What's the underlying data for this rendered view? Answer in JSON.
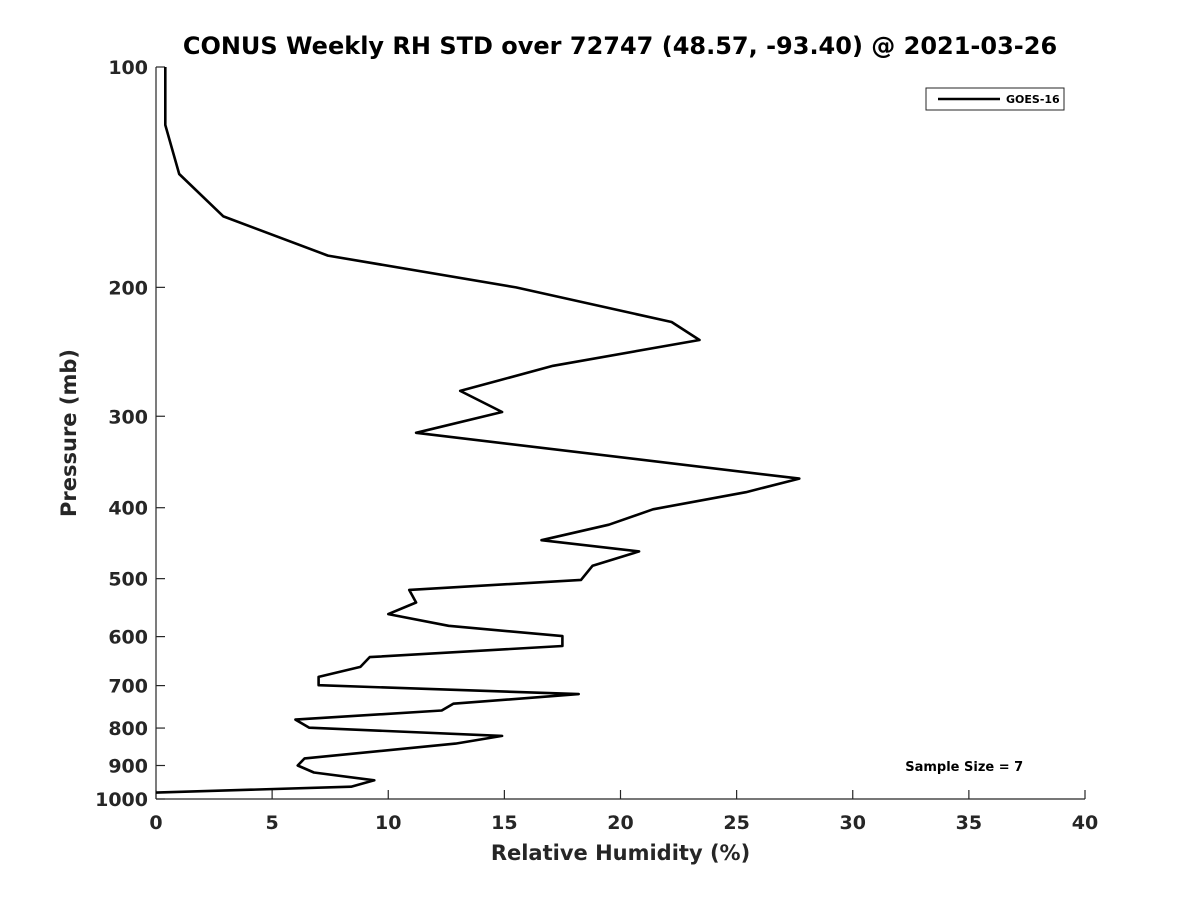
{
  "chart_data": {
    "type": "line",
    "title": "CONUS Weekly RH STD over 72747 (48.57, -93.40) @ 2021-03-26",
    "xlabel": "Relative Humidity (%)",
    "ylabel": "Pressure (mb)",
    "xlim": [
      0,
      40
    ],
    "ylim": [
      100,
      1000
    ],
    "yscale": "log",
    "y_reversed": true,
    "grid": false,
    "legend_position": "top-right",
    "x_ticks": [
      "0",
      "5",
      "10",
      "15",
      "20",
      "25",
      "30",
      "35",
      "40"
    ],
    "y_ticks": [
      "100",
      "200",
      "300",
      "400",
      "500",
      "600",
      "700",
      "800",
      "900",
      "1000"
    ],
    "series": [
      {
        "name": "GOES-16",
        "color": "#000000",
        "points": [
          [
            0.4,
            100
          ],
          [
            0.4,
            120
          ],
          [
            1.0,
            140
          ],
          [
            2.9,
            160
          ],
          [
            7.4,
            181
          ],
          [
            15.5,
            200
          ],
          [
            22.2,
            223
          ],
          [
            23.4,
            236
          ],
          [
            17.1,
            256
          ],
          [
            13.1,
            277
          ],
          [
            14.9,
            296
          ],
          [
            11.2,
            316
          ],
          [
            27.7,
            365
          ],
          [
            25.4,
            381
          ],
          [
            21.4,
            402
          ],
          [
            19.5,
            422
          ],
          [
            16.6,
            443
          ],
          [
            20.8,
            459
          ],
          [
            18.8,
            480
          ],
          [
            18.3,
            502
          ],
          [
            10.9,
            518
          ],
          [
            11.2,
            539
          ],
          [
            10.0,
            559
          ],
          [
            12.6,
            580
          ],
          [
            17.5,
            599
          ],
          [
            17.5,
            618
          ],
          [
            9.2,
            640
          ],
          [
            8.8,
            660
          ],
          [
            7.0,
            681
          ],
          [
            7.0,
            699
          ],
          [
            18.2,
            719
          ],
          [
            12.8,
            741
          ],
          [
            12.3,
            757
          ],
          [
            6.0,
            779
          ],
          [
            6.6,
            799
          ],
          [
            14.9,
            820
          ],
          [
            12.9,
            840
          ],
          [
            6.4,
            880
          ],
          [
            6.1,
            900
          ],
          [
            6.8,
            920
          ],
          [
            9.4,
            943
          ],
          [
            8.4,
            962
          ],
          [
            0.0,
            980
          ]
        ]
      }
    ],
    "annotation": "Sample Size = 7"
  }
}
